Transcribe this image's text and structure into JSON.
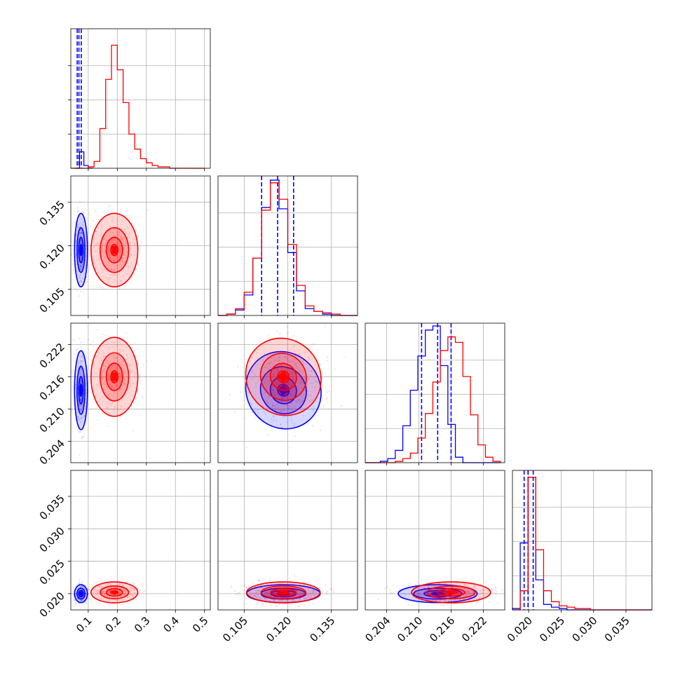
{
  "colors": {
    "series_a": "#0000ff",
    "series_b": "#ff0000",
    "grid": "#b0b0b0",
    "frame": "#000000"
  },
  "chart_data": {
    "type": "corner",
    "grid": true,
    "parameters": [
      {
        "range": [
          0.04,
          0.52
        ],
        "ticks": [
          0.1,
          0.2,
          0.3,
          0.4,
          0.5
        ],
        "tick_labels": [
          "0.1",
          "0.2",
          "0.3",
          "0.4",
          "0.5"
        ]
      },
      {
        "range": [
          0.096,
          0.144
        ],
        "ticks": [
          0.105,
          0.12,
          0.135
        ],
        "tick_labels": [
          "0.105",
          "0.120",
          "0.135"
        ]
      },
      {
        "range": [
          0.2,
          0.226
        ],
        "ticks": [
          0.204,
          0.21,
          0.216,
          0.222
        ],
        "tick_labels": [
          "0.204",
          "0.210",
          "0.216",
          "0.222"
        ]
      },
      {
        "range": [
          0.0175,
          0.039
        ],
        "ticks": [
          0.02,
          0.025,
          0.03,
          0.035
        ],
        "tick_labels": [
          "0.020",
          "0.025",
          "0.030",
          "0.035"
        ]
      }
    ],
    "series": [
      {
        "color": "#0000ff",
        "marginals": [
          {
            "edges": [
              0.055,
              0.07,
              0.085,
              0.1,
              0.115
            ],
            "counts": [
              0.0,
              0.12,
              0.02,
              0.0
            ],
            "quantiles": [
              0.062,
              0.068,
              0.076
            ]
          },
          {
            "edges": [
              0.096,
              0.099,
              0.102,
              0.105,
              0.108,
              0.111,
              0.114,
              0.117,
              0.12,
              0.123,
              0.126,
              0.129,
              0.132,
              0.135,
              0.138,
              0.141,
              0.144
            ],
            "counts": [
              0.0,
              0.01,
              0.04,
              0.15,
              0.42,
              0.79,
              0.99,
              0.78,
              0.46,
              0.18,
              0.05,
              0.03,
              0.01,
              0.0,
              0.0,
              0.0
            ],
            "quantiles": [
              0.111,
              0.1165,
              0.122
            ]
          },
          {
            "edges": [
              0.2,
              0.2014,
              0.2028,
              0.2042,
              0.2056,
              0.207,
              0.2084,
              0.2098,
              0.2112,
              0.2126,
              0.214,
              0.2154,
              0.2168,
              0.2182,
              0.2196,
              0.221,
              0.2224,
              0.2238,
              0.2252
            ],
            "counts": [
              0.0,
              0.0,
              0.01,
              0.03,
              0.09,
              0.27,
              0.53,
              0.78,
              0.97,
              1.0,
              0.71,
              0.28,
              0.04,
              0.0,
              0.0,
              0.0,
              0.0,
              0.0
            ],
            "quantiles": [
              0.2105,
              0.2135,
              0.216
            ]
          },
          {
            "edges": [
              0.0175,
              0.0187,
              0.0199,
              0.0211,
              0.0223,
              0.0235,
              0.0247,
              0.0259,
              0.0271,
              0.0283,
              0.0295,
              0.0307,
              0.0319,
              0.0331,
              0.0343,
              0.0355,
              0.0367,
              0.0379,
              0.039
            ],
            "counts": [
              0.01,
              0.49,
              0.97,
              0.22,
              0.04,
              0.02,
              0.01,
              0.0,
              0.0,
              0.0,
              0.0,
              0.0,
              0.0,
              0.0,
              0.0,
              0.0,
              0.0,
              0.0
            ],
            "quantiles": [
              0.0193,
              0.0199,
              0.0207
            ]
          }
        ],
        "peaks": [
          {
            "x": 0,
            "y": 1,
            "mean": [
              0.075,
              0.1185
            ],
            "sd": [
              0.006,
              0.0055
            ]
          },
          {
            "x": 0,
            "y": 2,
            "mean": [
              0.075,
              0.2135
            ],
            "sd": [
              0.006,
              0.0032
            ]
          },
          {
            "x": 1,
            "y": 2,
            "mean": [
              0.1185,
              0.2135
            ],
            "sd": [
              0.0055,
              0.0032
            ]
          },
          {
            "x": 0,
            "y": 3,
            "mean": [
              0.075,
              0.02
            ],
            "sd": [
              0.006,
              0.0006
            ]
          },
          {
            "x": 1,
            "y": 3,
            "mean": [
              0.1185,
              0.02
            ],
            "sd": [
              0.0055,
              0.0006
            ]
          },
          {
            "x": 2,
            "y": 3,
            "mean": [
              0.2135,
              0.02
            ],
            "sd": [
              0.0032,
              0.0006
            ]
          }
        ]
      },
      {
        "color": "#ff0000",
        "marginals": [
          {
            "edges": [
              0.04,
              0.06,
              0.08,
              0.1,
              0.12,
              0.14,
              0.16,
              0.18,
              0.2,
              0.22,
              0.24,
              0.26,
              0.28,
              0.3,
              0.32,
              0.34,
              0.36,
              0.38,
              0.4,
              0.42,
              0.44,
              0.46,
              0.48,
              0.5
            ],
            "counts": [
              0.0,
              0.0,
              0.0,
              0.01,
              0.05,
              0.29,
              0.65,
              0.9,
              0.72,
              0.48,
              0.25,
              0.14,
              0.07,
              0.04,
              0.02,
              0.01,
              0.01,
              0.0,
              0.0,
              0.0,
              0.0,
              0.0,
              0.0
            ],
            "quantiles": []
          },
          {
            "edges": [
              0.096,
              0.099,
              0.102,
              0.105,
              0.108,
              0.111,
              0.114,
              0.117,
              0.12,
              0.123,
              0.126,
              0.129,
              0.132,
              0.135,
              0.138,
              0.141,
              0.144
            ],
            "counts": [
              0.0,
              0.01,
              0.05,
              0.17,
              0.42,
              0.77,
              0.97,
              0.85,
              0.52,
              0.22,
              0.07,
              0.03,
              0.02,
              0.01,
              0.0,
              0.0
            ],
            "quantiles": []
          },
          {
            "edges": [
              0.2,
              0.2014,
              0.2028,
              0.2042,
              0.2056,
              0.207,
              0.2084,
              0.2098,
              0.2112,
              0.2126,
              0.214,
              0.2154,
              0.2168,
              0.2182,
              0.2196,
              0.221,
              0.2224,
              0.2238,
              0.2252
            ],
            "counts": [
              0.0,
              0.0,
              0.0,
              0.0,
              0.01,
              0.03,
              0.07,
              0.18,
              0.36,
              0.59,
              0.82,
              0.92,
              0.88,
              0.63,
              0.35,
              0.13,
              0.04,
              0.01
            ],
            "quantiles": []
          },
          {
            "edges": [
              0.0175,
              0.0187,
              0.0199,
              0.0211,
              0.0223,
              0.0235,
              0.0247,
              0.0259,
              0.0271,
              0.0283,
              0.0295,
              0.0307,
              0.0319,
              0.0331,
              0.0343,
              0.0355,
              0.0367,
              0.0379,
              0.039
            ],
            "counts": [
              0.0,
              0.14,
              0.97,
              0.44,
              0.14,
              0.06,
              0.03,
              0.02,
              0.01,
              0.01,
              0.0,
              0.0,
              0.0,
              0.0,
              0.0,
              0.0,
              0.0,
              0.0
            ],
            "quantiles": []
          }
        ],
        "peaks": [
          {
            "x": 0,
            "y": 1,
            "mean": [
              0.19,
              0.1185
            ],
            "sd": [
              0.035,
              0.0055
            ]
          },
          {
            "x": 0,
            "y": 2,
            "mean": [
              0.19,
              0.216
            ],
            "sd": [
              0.035,
              0.0032
            ]
          },
          {
            "x": 1,
            "y": 2,
            "mean": [
              0.1185,
              0.216
            ],
            "sd": [
              0.0055,
              0.0032
            ]
          },
          {
            "x": 0,
            "y": 3,
            "mean": [
              0.19,
              0.0202
            ],
            "sd": [
              0.035,
              0.0007
            ]
          },
          {
            "x": 1,
            "y": 3,
            "mean": [
              0.1185,
              0.0202
            ],
            "sd": [
              0.0055,
              0.0007
            ]
          },
          {
            "x": 2,
            "y": 3,
            "mean": [
              0.216,
              0.0202
            ],
            "sd": [
              0.0032,
              0.0007
            ]
          }
        ]
      }
    ]
  }
}
